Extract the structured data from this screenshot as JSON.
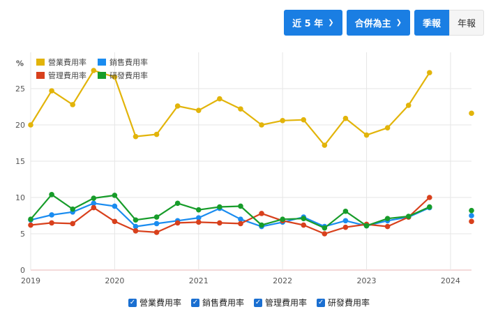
{
  "toolbar": {
    "range_label": "近 5 年",
    "scope_label": "合併為主",
    "quarterly_label": "季報",
    "annual_label": "年報"
  },
  "bottom_legend": [
    {
      "label": "營業費用率",
      "checked": true
    },
    {
      "label": "銷售費用率",
      "checked": true
    },
    {
      "label": "管理費用率",
      "checked": true
    },
    {
      "label": "研發費用率",
      "checked": true
    }
  ],
  "chart_data": {
    "type": "line",
    "ylabel": "%",
    "ylim": [
      0,
      30
    ],
    "yticks": [
      0,
      5,
      10,
      15,
      20,
      25
    ],
    "xlim": [
      2019,
      2024.25
    ],
    "xticks": [
      "2019",
      "2020",
      "2021",
      "2022",
      "2023",
      "2024"
    ],
    "grid": true,
    "legend_position": "top-left",
    "x": [
      2019.0,
      2019.25,
      2019.5,
      2019.75,
      2020.0,
      2020.25,
      2020.5,
      2020.75,
      2021.0,
      2021.25,
      2021.5,
      2021.75,
      2022.0,
      2022.25,
      2022.5,
      2022.75,
      2023.0,
      2023.25,
      2023.5,
      2023.75
    ],
    "series": [
      {
        "name": "營業費用率",
        "color": "#e2b40a",
        "values": [
          20.0,
          24.7,
          22.8,
          27.5,
          26.6,
          18.4,
          18.7,
          22.6,
          22.0,
          23.6,
          22.2,
          20.0,
          20.6,
          20.7,
          17.2,
          20.9,
          18.6,
          19.6,
          22.7,
          27.2
        ],
        "extra": {
          "x": 2024.25,
          "value": 21.6
        }
      },
      {
        "name": "銷售費用率",
        "color": "#1a8cf0",
        "values": [
          6.9,
          7.6,
          8.0,
          9.2,
          8.8,
          6.0,
          6.4,
          6.8,
          7.2,
          8.5,
          7.0,
          6.0,
          6.6,
          7.3,
          6.0,
          6.8,
          6.1,
          6.8,
          7.3,
          8.6
        ],
        "extra": {
          "x": 2024.25,
          "value": 7.5
        }
      },
      {
        "name": "管理費用率",
        "color": "#d8401c",
        "values": [
          6.2,
          6.5,
          6.4,
          8.6,
          6.7,
          5.4,
          5.2,
          6.5,
          6.6,
          6.5,
          6.4,
          7.8,
          6.8,
          6.2,
          5.0,
          5.9,
          6.3,
          6.0,
          7.3,
          10.0
        ],
        "extra": {
          "x": 2024.25,
          "value": 6.7
        }
      },
      {
        "name": "研發費用率",
        "color": "#179c2a",
        "values": [
          7.0,
          10.4,
          8.4,
          9.9,
          10.3,
          6.9,
          7.3,
          9.2,
          8.3,
          8.7,
          8.8,
          6.2,
          7.0,
          7.1,
          5.8,
          8.1,
          6.1,
          7.1,
          7.4,
          8.7
        ],
        "extra": {
          "x": 2024.25,
          "value": 8.2
        }
      }
    ]
  }
}
